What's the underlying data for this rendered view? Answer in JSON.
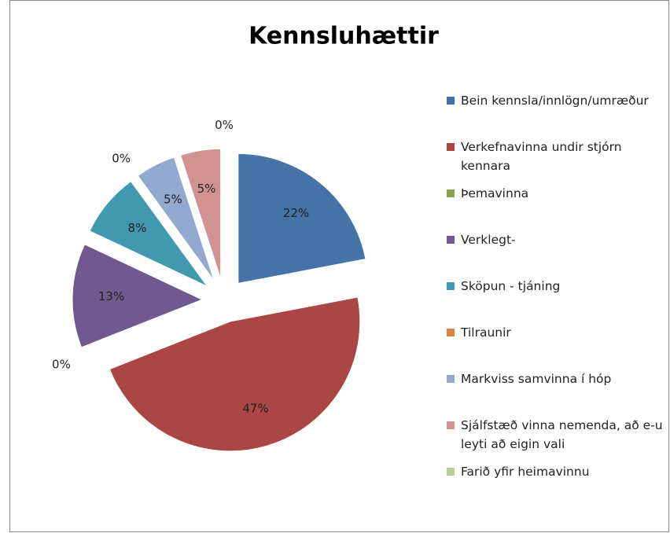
{
  "chart_data": {
    "type": "pie",
    "title": "Kennsluhættir",
    "categories": [
      "Bein kennsla/innlögn/umræður",
      "Verkefnavinna undir stjórn kennara",
      "Þemavinna",
      "Verklegt-",
      "Sköpun - tjáning",
      "Tilraunir",
      "Markviss samvinna í hóp",
      "Sjálfstæð vinna nemenda, að e-u leyti að eigin vali",
      "Farið yfir heimavinnu"
    ],
    "values": [
      22,
      47,
      0,
      13,
      8,
      0,
      5,
      5,
      0
    ],
    "value_labels": [
      "22%",
      "47%",
      "0%",
      "13%",
      "8%",
      "0%",
      "5%",
      "5%",
      "0%"
    ],
    "colors": [
      "#4572a7",
      "#aa4643",
      "#89a54e",
      "#71588f",
      "#4198af",
      "#db843d",
      "#93a9cf",
      "#d19392",
      "#b9cd96"
    ],
    "legend": "right"
  }
}
